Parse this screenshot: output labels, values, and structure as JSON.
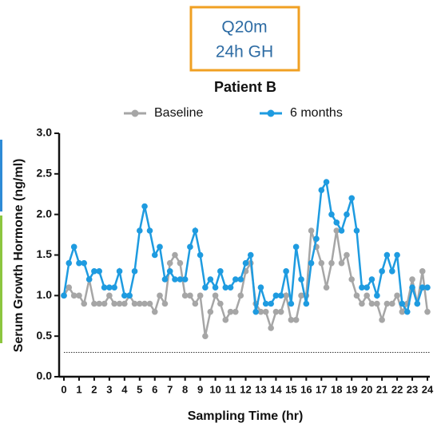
{
  "chart_data": {
    "type": "line",
    "annotation": [
      "Q20m",
      "24h GH"
    ],
    "title": "Patient B",
    "x_label": "Sampling Time (hr)",
    "y_label": "Serum Growth Hormone (ng/ml)",
    "x": [
      0,
      0.33,
      0.67,
      1,
      1.33,
      1.67,
      2,
      2.33,
      2.67,
      3,
      3.33,
      3.67,
      4,
      4.33,
      4.67,
      5,
      5.33,
      5.67,
      6,
      6.33,
      6.67,
      7,
      7.33,
      7.67,
      8,
      8.33,
      8.67,
      9,
      9.33,
      9.67,
      10,
      10.33,
      10.67,
      11,
      11.33,
      11.67,
      12,
      12.33,
      12.67,
      13,
      13.33,
      13.67,
      14,
      14.33,
      14.67,
      15,
      15.33,
      15.67,
      16,
      16.33,
      16.67,
      17,
      17.33,
      17.67,
      18,
      18.33,
      18.67,
      19,
      19.33,
      19.67,
      20,
      20.33,
      20.67,
      21,
      21.33,
      21.67,
      22,
      22.33,
      22.67,
      23,
      23.33,
      23.67,
      24
    ],
    "series": [
      {
        "name": "Baseline",
        "color": "#a6a6a6",
        "values": [
          1.0,
          1.1,
          1.0,
          1.0,
          0.9,
          1.2,
          0.9,
          0.9,
          0.9,
          1.0,
          0.9,
          0.9,
          0.9,
          1.0,
          0.9,
          0.9,
          0.9,
          0.9,
          0.8,
          1.0,
          0.9,
          1.4,
          1.5,
          1.4,
          1.0,
          1.0,
          0.9,
          1.0,
          0.5,
          0.8,
          1.0,
          0.9,
          0.7,
          0.8,
          0.8,
          1.0,
          1.3,
          1.4,
          0.9,
          0.8,
          0.8,
          0.6,
          0.8,
          0.8,
          1.0,
          0.7,
          0.7,
          1.0,
          1.0,
          1.8,
          1.6,
          1.4,
          1.1,
          1.4,
          1.8,
          1.4,
          1.5,
          1.2,
          1.0,
          0.9,
          1.0,
          0.9,
          0.9,
          0.7,
          0.9,
          0.9,
          1.0,
          0.8,
          0.9,
          1.2,
          0.9,
          1.3,
          0.8
        ]
      },
      {
        "name": "6 months",
        "color": "#1e9be0",
        "values": [
          1.0,
          1.4,
          1.6,
          1.4,
          1.4,
          1.2,
          1.3,
          1.3,
          1.1,
          1.1,
          1.1,
          1.3,
          1.0,
          1.0,
          1.3,
          1.8,
          2.1,
          1.8,
          1.5,
          1.6,
          1.2,
          1.3,
          1.2,
          1.2,
          1.2,
          1.6,
          1.8,
          1.5,
          1.1,
          1.2,
          1.1,
          1.3,
          1.1,
          1.1,
          1.2,
          1.2,
          1.4,
          1.5,
          0.8,
          1.1,
          0.9,
          0.9,
          1.0,
          1.0,
          1.3,
          0.9,
          1.6,
          1.2,
          0.9,
          1.4,
          1.7,
          2.3,
          2.4,
          2.0,
          1.9,
          1.8,
          2.0,
          2.2,
          1.8,
          1.1,
          1.1,
          1.2,
          1.0,
          1.3,
          1.5,
          1.3,
          1.5,
          0.9,
          0.8,
          1.1,
          0.9,
          1.1,
          1.1
        ]
      }
    ],
    "threshold": 0.3,
    "xlim": [
      0,
      24
    ],
    "xticks": [
      0,
      1,
      2,
      3,
      4,
      5,
      6,
      7,
      8,
      9,
      10,
      11,
      12,
      13,
      14,
      15,
      16,
      17,
      18,
      19,
      20,
      21,
      22,
      23,
      24
    ],
    "ylim": [
      0,
      3
    ],
    "yticks": [
      {
        "value": 0,
        "label": "0.0"
      },
      0.5,
      {
        "value": 1,
        "label": "1.0"
      },
      1.5,
      {
        "value": 2,
        "label": "2.0"
      },
      2.5,
      {
        "value": 3,
        "label": "3.0"
      }
    ]
  }
}
